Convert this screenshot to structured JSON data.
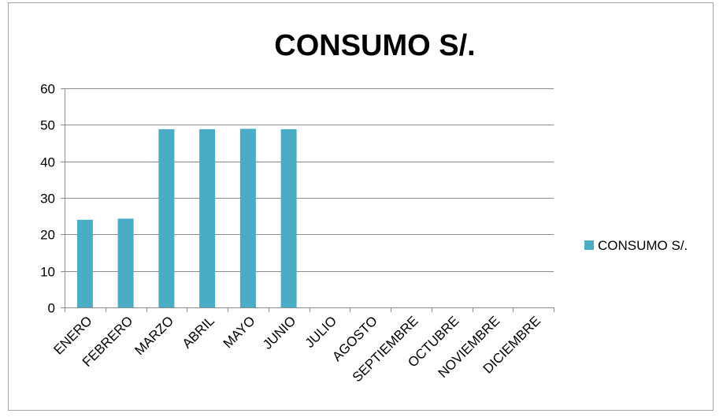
{
  "chart_data": {
    "type": "bar",
    "title": "CONSUMO S/.",
    "xlabel": "",
    "ylabel": "",
    "categories": [
      "ENERO",
      "FEBRERO",
      "MARZO",
      "ABRIL",
      "MAYO",
      "JUNIO",
      "JULIO",
      "AGOSTO",
      "SEPTIEMBRE",
      "OCTUBRE",
      "NOVIEMBRE",
      "DICIEMBRE"
    ],
    "series": [
      {
        "name": "CONSUMO S/.",
        "color": "#4BACC6",
        "values": [
          24,
          24.3,
          48.8,
          48.8,
          48.9,
          48.8,
          0,
          0,
          0,
          0,
          0,
          0
        ]
      }
    ],
    "yticks": [
      "0",
      "10",
      "20",
      "30",
      "40",
      "50",
      "60"
    ],
    "ylim": [
      0,
      60
    ],
    "grid": true,
    "legend_position": "right"
  }
}
